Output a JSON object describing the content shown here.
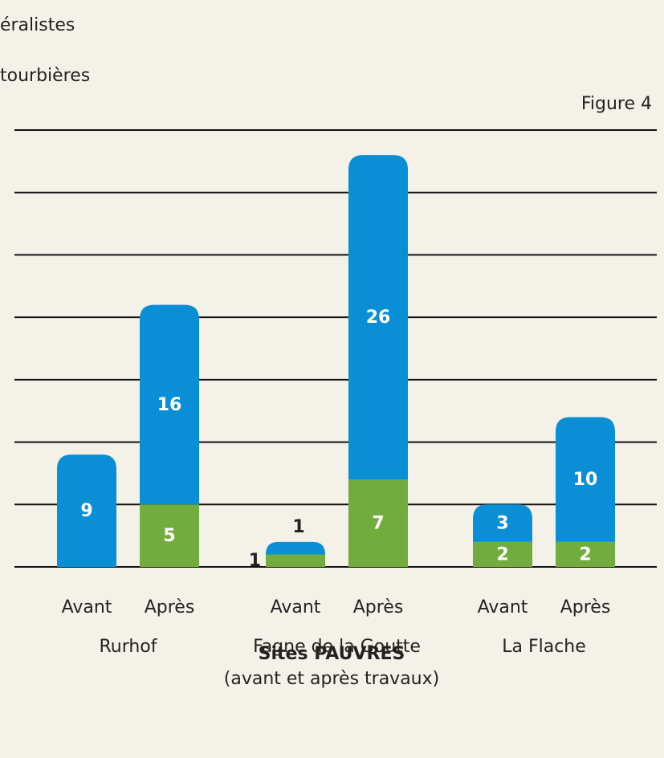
{
  "chart_data": {
    "type": "stacked_bar",
    "title": "Figure 4",
    "subtitle": "Sites PAUVRES",
    "caption": "(avant et après travaux)",
    "categories": [
      "Avant",
      "Après",
      "Avant",
      "Après",
      "Avant",
      "Après"
    ],
    "groups": [
      "Rurhof",
      "Fagne de la Goutte",
      "La Flache"
    ],
    "series": [
      {
        "name": "tourbières",
        "color": "#72ac3e",
        "values": [
          null,
          5,
          1,
          7,
          2,
          2
        ]
      },
      {
        "name": "néralistes",
        "color": "#0a8fd6",
        "values": [
          9,
          16,
          1,
          26,
          3,
          10
        ]
      }
    ],
    "ylim": [
      0,
      35
    ],
    "yticks": [
      0,
      5,
      10,
      15,
      20,
      25,
      30,
      35
    ],
    "grid": true
  }
}
